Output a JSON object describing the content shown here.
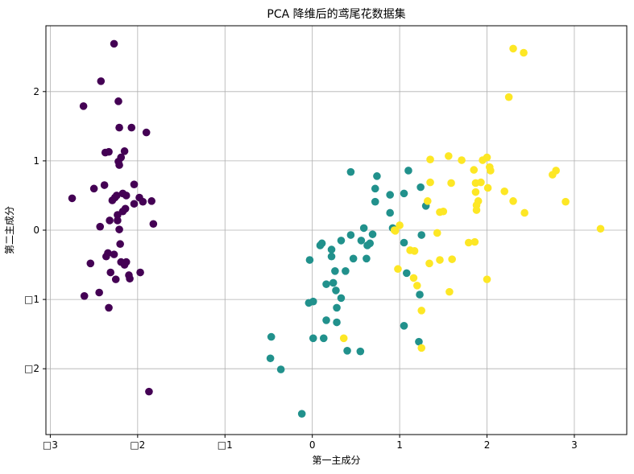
{
  "chart_data": {
    "type": "scatter",
    "title": "PCA 降维后的鸢尾花数据集",
    "xlabel": "第一主成分",
    "ylabel": "第二主成分",
    "xlim": [
      -3.05,
      3.6
    ],
    "ylim": [
      -2.95,
      2.95
    ],
    "grid": true,
    "x_ticks": [
      -3,
      -2,
      -1,
      0,
      1,
      2,
      3
    ],
    "x_tick_labels": [
      "□3",
      "□2",
      "□1",
      "0",
      "1",
      "2",
      "3"
    ],
    "y_ticks": [
      -2,
      -1,
      0,
      1,
      2
    ],
    "y_tick_labels": [
      "□2",
      "□1",
      "0",
      "1",
      "2"
    ],
    "colors": [
      "#440154",
      "#21918c",
      "#fde725"
    ],
    "series": [
      {
        "values": [
          [
            -2.27,
            2.69
          ],
          [
            -2.42,
            2.15
          ],
          [
            -2.62,
            1.79
          ],
          [
            -2.22,
            1.86
          ],
          [
            -2.21,
            1.48
          ],
          [
            -2.07,
            1.48
          ],
          [
            -1.9,
            1.41
          ],
          [
            -2.37,
            1.12
          ],
          [
            -2.33,
            1.13
          ],
          [
            -2.15,
            1.14
          ],
          [
            -2.19,
            1.05
          ],
          [
            -2.22,
            0.99
          ],
          [
            -2.21,
            0.94
          ],
          [
            -2.38,
            0.65
          ],
          [
            -2.04,
            0.66
          ],
          [
            -2.5,
            0.6
          ],
          [
            -2.13,
            0.5
          ],
          [
            -2.17,
            0.53
          ],
          [
            -2.24,
            0.5
          ],
          [
            -2.29,
            0.43
          ],
          [
            -2.26,
            0.47
          ],
          [
            -1.98,
            0.47
          ],
          [
            -1.94,
            0.41
          ],
          [
            -1.84,
            0.42
          ],
          [
            -2.75,
            0.46
          ],
          [
            -2.04,
            0.38
          ],
          [
            -2.14,
            0.31
          ],
          [
            -2.17,
            0.27
          ],
          [
            -2.23,
            0.22
          ],
          [
            -2.32,
            0.14
          ],
          [
            -2.23,
            0.14
          ],
          [
            -1.82,
            0.09
          ],
          [
            -2.43,
            0.05
          ],
          [
            -2.21,
            0.01
          ],
          [
            -2.2,
            -0.2
          ],
          [
            -2.34,
            -0.33
          ],
          [
            -2.36,
            -0.38
          ],
          [
            -2.27,
            -0.35
          ],
          [
            -2.54,
            -0.48
          ],
          [
            -2.19,
            -0.46
          ],
          [
            -2.13,
            -0.46
          ],
          [
            -2.15,
            -0.5
          ],
          [
            -2.31,
            -0.61
          ],
          [
            -1.97,
            -0.61
          ],
          [
            -2.1,
            -0.65
          ],
          [
            -2.09,
            -0.7
          ],
          [
            -2.25,
            -0.71
          ],
          [
            -2.44,
            -0.9
          ],
          [
            -2.61,
            -0.95
          ],
          [
            -2.33,
            -1.12
          ],
          [
            -1.87,
            -2.33
          ]
        ]
      },
      {
        "values": [
          [
            0.44,
            0.84
          ],
          [
            1.1,
            0.86
          ],
          [
            0.74,
            0.78
          ],
          [
            0.89,
            0.51
          ],
          [
            0.72,
            0.6
          ],
          [
            1.05,
            0.53
          ],
          [
            1.24,
            0.62
          ],
          [
            0.72,
            0.41
          ],
          [
            1.3,
            0.35
          ],
          [
            0.89,
            0.25
          ],
          [
            0.92,
            0.03
          ],
          [
            0.59,
            0.03
          ],
          [
            0.69,
            -0.06
          ],
          [
            0.44,
            -0.07
          ],
          [
            1.25,
            -0.07
          ],
          [
            0.56,
            -0.15
          ],
          [
            0.66,
            -0.19
          ],
          [
            1.05,
            -0.18
          ],
          [
            0.33,
            -0.15
          ],
          [
            0.63,
            -0.22
          ],
          [
            0.11,
            -0.19
          ],
          [
            0.09,
            -0.22
          ],
          [
            0.22,
            -0.28
          ],
          [
            0.22,
            -0.38
          ],
          [
            0.47,
            -0.41
          ],
          [
            0.62,
            -0.41
          ],
          [
            -0.03,
            -0.43
          ],
          [
            0.26,
            -0.59
          ],
          [
            0.38,
            -0.59
          ],
          [
            1.08,
            -0.62
          ],
          [
            0.16,
            -0.78
          ],
          [
            0.24,
            -0.76
          ],
          [
            0.27,
            -0.87
          ],
          [
            1.23,
            -0.93
          ],
          [
            0.33,
            -0.98
          ],
          [
            -0.04,
            -1.05
          ],
          [
            0.01,
            -1.03
          ],
          [
            0.28,
            -1.12
          ],
          [
            0.16,
            -1.3
          ],
          [
            0.28,
            -1.33
          ],
          [
            1.05,
            -1.38
          ],
          [
            0.01,
            -1.56
          ],
          [
            0.13,
            -1.56
          ],
          [
            -0.47,
            -1.54
          ],
          [
            1.22,
            -1.61
          ],
          [
            -0.48,
            -1.85
          ],
          [
            0.4,
            -1.74
          ],
          [
            0.55,
            -1.75
          ],
          [
            -0.36,
            -2.01
          ],
          [
            -0.12,
            -2.65
          ]
        ]
      },
      {
        "values": [
          [
            2.3,
            2.62
          ],
          [
            2.42,
            2.56
          ],
          [
            2.25,
            1.92
          ],
          [
            1.56,
            1.07
          ],
          [
            1.35,
            1.02
          ],
          [
            1.71,
            1.01
          ],
          [
            2.0,
            1.05
          ],
          [
            1.95,
            1.01
          ],
          [
            2.03,
            0.91
          ],
          [
            2.04,
            0.86
          ],
          [
            1.85,
            0.87
          ],
          [
            2.79,
            0.86
          ],
          [
            2.75,
            0.8
          ],
          [
            1.59,
            0.68
          ],
          [
            1.35,
            0.69
          ],
          [
            1.87,
            0.68
          ],
          [
            1.93,
            0.69
          ],
          [
            2.01,
            0.61
          ],
          [
            1.87,
            0.55
          ],
          [
            2.2,
            0.56
          ],
          [
            1.32,
            0.42
          ],
          [
            1.9,
            0.42
          ],
          [
            2.3,
            0.42
          ],
          [
            2.9,
            0.41
          ],
          [
            1.88,
            0.36
          ],
          [
            1.88,
            0.29
          ],
          [
            1.46,
            0.26
          ],
          [
            1.5,
            0.27
          ],
          [
            2.43,
            0.25
          ],
          [
            3.3,
            0.02
          ],
          [
            1.0,
            0.07
          ],
          [
            0.95,
            -0.01
          ],
          [
            0.94,
            0.0
          ],
          [
            1.43,
            -0.04
          ],
          [
            1.79,
            -0.18
          ],
          [
            1.86,
            -0.17
          ],
          [
            1.12,
            -0.29
          ],
          [
            1.17,
            -0.3
          ],
          [
            1.46,
            -0.43
          ],
          [
            1.6,
            -0.42
          ],
          [
            1.34,
            -0.48
          ],
          [
            0.98,
            -0.56
          ],
          [
            1.16,
            -0.69
          ],
          [
            1.2,
            -0.8
          ],
          [
            2.0,
            -0.71
          ],
          [
            1.57,
            -0.89
          ],
          [
            1.25,
            -1.16
          ],
          [
            0.36,
            -1.56
          ],
          [
            1.25,
            -1.7
          ]
        ]
      }
    ]
  }
}
